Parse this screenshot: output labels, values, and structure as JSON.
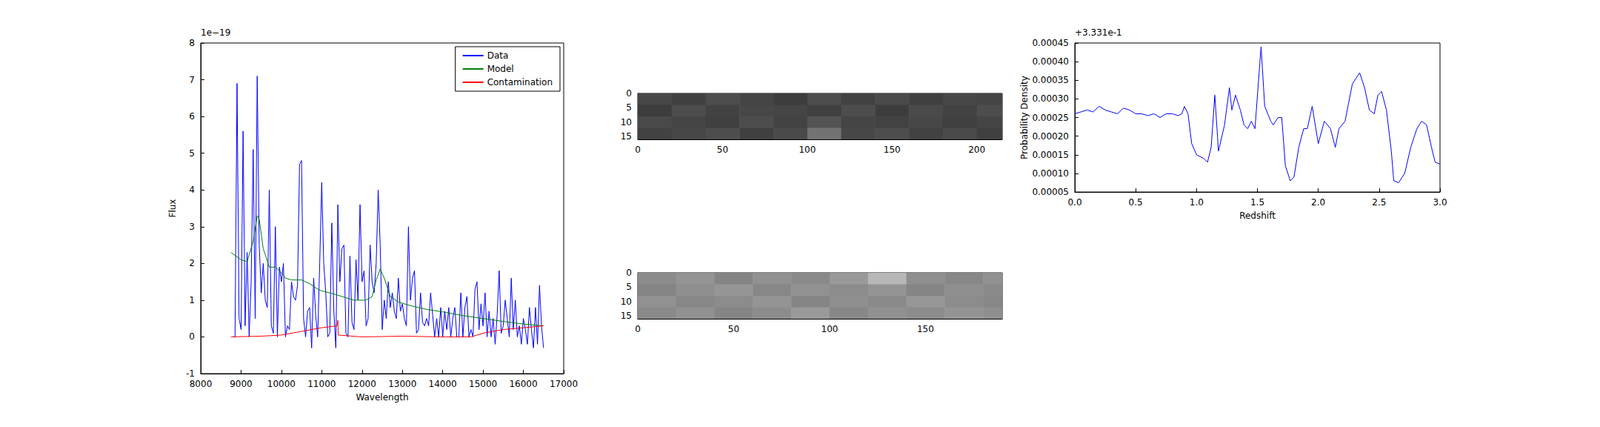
{
  "chart_data": [
    {
      "type": "line",
      "x_label": "Wavelength",
      "y_label": "Flux",
      "y_offset_text": "1e−19",
      "xlim": [
        8000,
        17000
      ],
      "xticks": [
        8000,
        9000,
        10000,
        11000,
        12000,
        13000,
        14000,
        15000,
        16000,
        17000
      ],
      "ylim": [
        -1,
        8
      ],
      "yticks": [
        -1,
        0,
        1,
        2,
        3,
        4,
        5,
        6,
        7,
        8
      ],
      "grid": false,
      "legend": "upper right",
      "series": [
        {
          "name": "Data",
          "color": "#0000ff",
          "x": [
            8800,
            8850,
            8900,
            8950,
            9000,
            9050,
            9100,
            9150,
            9200,
            9250,
            9300,
            9350,
            9400,
            9450,
            9500,
            9550,
            9600,
            9650,
            9700,
            9750,
            9800,
            9850,
            9900,
            9950,
            10000,
            10050,
            10100,
            10150,
            10200,
            10250,
            10300,
            10350,
            10400,
            10450,
            10500,
            10550,
            10600,
            10650,
            10700,
            10750,
            10800,
            10850,
            10900,
            10950,
            11000,
            11050,
            11100,
            11150,
            11200,
            11250,
            11300,
            11350,
            11400,
            11450,
            11500,
            11550,
            11600,
            11650,
            11700,
            11750,
            11800,
            11850,
            11900,
            11950,
            12000,
            12050,
            12100,
            12150,
            12200,
            12250,
            12300,
            12350,
            12400,
            12450,
            12500,
            12550,
            12600,
            12650,
            12700,
            12750,
            12800,
            12850,
            12900,
            12950,
            13000,
            13050,
            13100,
            13150,
            13200,
            13250,
            13300,
            13350,
            13400,
            13450,
            13500,
            13550,
            13600,
            13650,
            13700,
            13750,
            13800,
            13850,
            13900,
            13950,
            14000,
            14050,
            14100,
            14150,
            14200,
            14250,
            14300,
            14350,
            14400,
            14450,
            14500,
            14550,
            14600,
            14650,
            14700,
            14750,
            14800,
            14850,
            14900,
            14950,
            15000,
            15050,
            15100,
            15150,
            15200,
            15250,
            15300,
            15350,
            15400,
            15450,
            15500,
            15550,
            15600,
            15650,
            15700,
            15750,
            15800,
            15850,
            15900,
            15950,
            16000,
            16050,
            16100,
            16150,
            16200,
            16250,
            16300,
            16350,
            16400,
            16450,
            16500
          ],
          "values": [
            0,
            0,
            6.9,
            0.5,
            0.2,
            5.6,
            0.3,
            2.3,
            0,
            1.5,
            5.1,
            0.5,
            7.1,
            2.5,
            1.2,
            2.0,
            1.0,
            0.8,
            4.0,
            0.3,
            0.1,
            3.0,
            0,
            1.9,
            1.5,
            2.0,
            0,
            0.3,
            0.2,
            1.5,
            1.1,
            1.0,
            1.4,
            4.7,
            4.8,
            0.5,
            0,
            0.7,
            0.8,
            -0.3,
            1.6,
            0.6,
            0,
            2.0,
            4.2,
            2.0,
            1.2,
            0,
            0.1,
            3.1,
            0.7,
            -0.3,
            3.6,
            1.5,
            2.4,
            2.5,
            0.1,
            0,
            2.2,
            0.4,
            0.2,
            2.1,
            1.0,
            3.6,
            1.5,
            1.8,
            0.3,
            0.5,
            2.5,
            1.5,
            1.2,
            2.0,
            4.0,
            2.5,
            0.2,
            1.0,
            0.5,
            1.5,
            0.8,
            1.2,
            0.7,
            0.5,
            1.6,
            0.7,
            0.9,
            0.5,
            0.3,
            3.0,
            1.0,
            1.6,
            1.8,
            0.1,
            0.2,
            1.2,
            0.4,
            0.3,
            0.5,
            0.3,
            1.2,
            0.6,
            0,
            0.5,
            0,
            0.8,
            0,
            0.7,
            0.2,
            0.8,
            0,
            0.5,
            0.8,
            0,
            0,
            1.2,
            0,
            0.8,
            1.1,
            0,
            0.2,
            0,
            1.3,
            1.5,
            0.2,
            0.9,
            0.3,
            1.2,
            0,
            0.7,
            0,
            0.5,
            -0.2,
            0.6,
            1.8,
            0.1,
            0.3,
            1.0,
            0.5,
            0,
            1.6,
            0.2,
            1.0,
            0,
            0.3,
            -0.2,
            0.5,
            0.2,
            -0.2,
            0.8,
            0.2,
            -0.3,
            0.8,
            -0.2,
            1.4,
            0.3,
            -0.3
          ]
        },
        {
          "name": "Model",
          "color": "#008000",
          "x": [
            8750,
            9000,
            9150,
            9300,
            9400,
            9450,
            9550,
            9700,
            9850,
            10000,
            10100,
            10250,
            10400,
            10500,
            10700,
            10900,
            11000,
            11200,
            11500,
            11800,
            12100,
            12250,
            12350,
            12450,
            12550,
            12700,
            12900,
            13200,
            13600,
            14000,
            14500,
            15000,
            15500,
            16000,
            16500
          ],
          "values": [
            2.3,
            2.1,
            2.05,
            2.6,
            3.3,
            3.2,
            2.4,
            1.9,
            1.9,
            1.75,
            1.6,
            1.55,
            1.55,
            1.55,
            1.45,
            1.3,
            1.25,
            1.2,
            1.1,
            1.0,
            1.0,
            1.1,
            1.55,
            1.85,
            1.6,
            1.1,
            0.95,
            0.85,
            0.75,
            0.68,
            0.58,
            0.5,
            0.42,
            0.35,
            0.3
          ]
        },
        {
          "name": "Contamination",
          "color": "#ff0000",
          "x": [
            8750,
            9500,
            10000,
            10500,
            11000,
            11380,
            11400,
            11410,
            12000,
            13000,
            14000,
            14700,
            15000,
            15500,
            16000,
            16500
          ],
          "values": [
            0,
            0.02,
            0.05,
            0.15,
            0.25,
            0.3,
            0.45,
            0.05,
            0.0,
            0.02,
            0.0,
            0,
            0.1,
            0.2,
            0.25,
            0.3
          ]
        }
      ]
    },
    {
      "type": "heatmap",
      "xlim": [
        0,
        215
      ],
      "xticks": [
        0,
        50,
        100,
        150,
        200
      ],
      "ylim": [
        0,
        16
      ],
      "yticks": [
        0,
        5,
        10,
        15
      ],
      "x_edges": [
        0,
        20,
        40,
        60,
        80,
        100,
        120,
        140,
        160,
        180,
        200,
        215
      ],
      "y_edges": [
        0,
        4,
        8,
        12,
        16
      ],
      "color_range": [
        0,
        1
      ],
      "cells": [
        [
          0.28,
          0.25,
          0.3,
          0.27,
          0.24,
          0.3,
          0.26,
          0.29,
          0.25,
          0.28,
          0.27
        ],
        [
          0.24,
          0.3,
          0.26,
          0.28,
          0.27,
          0.25,
          0.3,
          0.24,
          0.29,
          0.26,
          0.3
        ],
        [
          0.29,
          0.27,
          0.25,
          0.3,
          0.26,
          0.33,
          0.27,
          0.26,
          0.28,
          0.25,
          0.27
        ],
        [
          0.26,
          0.28,
          0.3,
          0.25,
          0.29,
          0.45,
          0.28,
          0.3,
          0.26,
          0.29,
          0.25
        ]
      ]
    },
    {
      "type": "heatmap",
      "xlim": [
        0,
        190
      ],
      "xticks": [
        0,
        50,
        100,
        150
      ],
      "ylim": [
        0,
        16
      ],
      "yticks": [
        0,
        5,
        10,
        15
      ],
      "x_edges": [
        0,
        20,
        40,
        60,
        80,
        100,
        120,
        140,
        160,
        180,
        190
      ],
      "y_edges": [
        0,
        4,
        8,
        12,
        16
      ],
      "color_range": [
        0,
        1
      ],
      "cells": [
        [
          0.55,
          0.58,
          0.52,
          0.57,
          0.54,
          0.6,
          0.72,
          0.56,
          0.53,
          0.57
        ],
        [
          0.52,
          0.56,
          0.59,
          0.53,
          0.57,
          0.55,
          0.58,
          0.52,
          0.56,
          0.54
        ],
        [
          0.57,
          0.53,
          0.55,
          0.58,
          0.52,
          0.56,
          0.54,
          0.59,
          0.55,
          0.53
        ],
        [
          0.54,
          0.57,
          0.52,
          0.55,
          0.6,
          0.53,
          0.57,
          0.55,
          0.58,
          0.56
        ]
      ]
    },
    {
      "type": "line",
      "x_label": "Redshift",
      "y_label": "Probability Density",
      "y_offset_text": "+3.331e-1",
      "xlim": [
        0,
        3
      ],
      "xticks": [
        {
          "value": 0,
          "label": "0.0"
        },
        {
          "value": 0.5,
          "label": "0.5"
        },
        {
          "value": 1,
          "label": "1.0"
        },
        {
          "value": 1.5,
          "label": "1.5"
        },
        {
          "value": 2,
          "label": "2.0"
        },
        {
          "value": 2.5,
          "label": "2.5"
        },
        {
          "value": 3,
          "label": "3.0"
        }
      ],
      "ylim": [
        5e-05,
        0.00045
      ],
      "yticks": [
        {
          "value": 5e-05,
          "label": "0.00005"
        },
        {
          "value": 0.0001,
          "label": "0.00010"
        },
        {
          "value": 0.00015,
          "label": "0.00015"
        },
        {
          "value": 0.0002,
          "label": "0.00020"
        },
        {
          "value": 0.00025,
          "label": "0.00025"
        },
        {
          "value": 0.0003,
          "label": "0.00030"
        },
        {
          "value": 0.00035,
          "label": "0.00035"
        },
        {
          "value": 0.0004,
          "label": "0.00040"
        },
        {
          "value": 0.00045,
          "label": "0.00045"
        }
      ],
      "grid": false,
      "series": [
        {
          "color": "#0000ff",
          "x": [
            0,
            0.05,
            0.1,
            0.15,
            0.2,
            0.25,
            0.3,
            0.35,
            0.4,
            0.45,
            0.5,
            0.55,
            0.6,
            0.65,
            0.7,
            0.75,
            0.8,
            0.85,
            0.88,
            0.9,
            0.93,
            0.96,
            1.0,
            1.06,
            1.09,
            1.12,
            1.15,
            1.18,
            1.23,
            1.27,
            1.29,
            1.32,
            1.36,
            1.39,
            1.42,
            1.45,
            1.48,
            1.53,
            1.56,
            1.61,
            1.63,
            1.67,
            1.7,
            1.73,
            1.77,
            1.8,
            1.84,
            1.88,
            1.91,
            1.95,
            2.0,
            2.05,
            2.1,
            2.14,
            2.17,
            2.22,
            2.28,
            2.34,
            2.38,
            2.42,
            2.46,
            2.49,
            2.52,
            2.56,
            2.6,
            2.62,
            2.66,
            2.71,
            2.76,
            2.81,
            2.85,
            2.89,
            2.93,
            2.96,
            3.0
          ],
          "values": [
            0.00026,
            0.000265,
            0.00027,
            0.000265,
            0.00028,
            0.00027,
            0.000265,
            0.00026,
            0.000275,
            0.00027,
            0.00026,
            0.00026,
            0.000255,
            0.00026,
            0.00025,
            0.00026,
            0.00026,
            0.000255,
            0.00026,
            0.00028,
            0.00026,
            0.00018,
            0.00015,
            0.00014,
            0.00013,
            0.00017,
            0.00031,
            0.00016,
            0.00023,
            0.00033,
            0.00027,
            0.00031,
            0.00027,
            0.00023,
            0.00022,
            0.00024,
            0.00022,
            0.00044,
            0.00028,
            0.00024,
            0.00023,
            0.00025,
            0.00025,
            0.00012,
            8e-05,
            9e-05,
            0.00017,
            0.00022,
            0.00022,
            0.00028,
            0.00018,
            0.00024,
            0.00022,
            0.00017,
            0.00022,
            0.00024,
            0.00034,
            0.00037,
            0.00033,
            0.00027,
            0.00026,
            0.00031,
            0.00032,
            0.00027,
            0.00016,
            8e-05,
            7.5e-05,
            0.0001,
            0.00017,
            0.00022,
            0.00024,
            0.00023,
            0.00017,
            0.00013,
            0.000125
          ]
        }
      ]
    }
  ]
}
